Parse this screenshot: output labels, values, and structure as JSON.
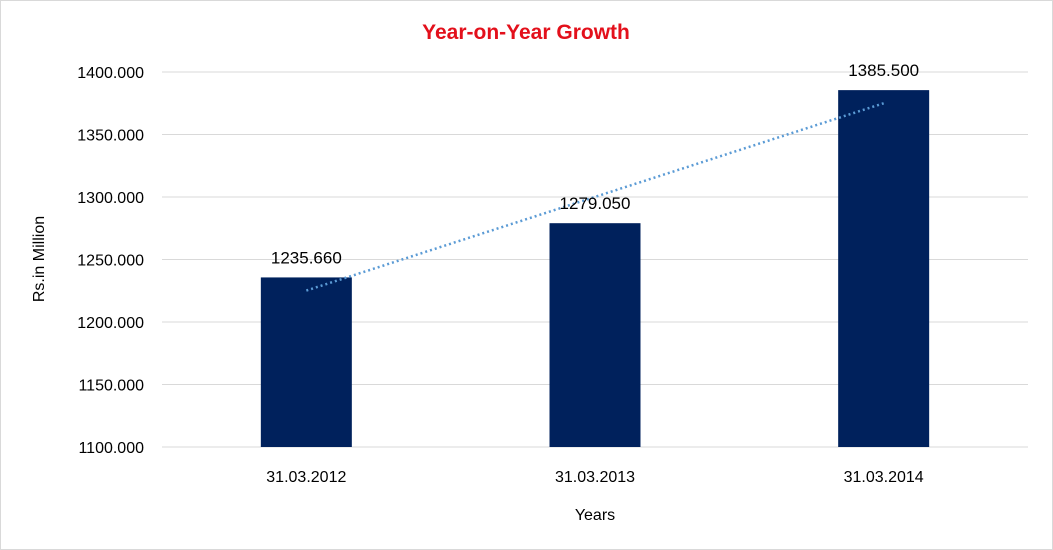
{
  "chart_data": {
    "type": "bar",
    "title": "Year-on-Year Growth",
    "xlabel": "Years",
    "ylabel": "Rs.in Million",
    "categories": [
      "31.03.2012",
      "31.03.2013",
      "31.03.2014"
    ],
    "values": [
      1235.66,
      1279.05,
      1385.5
    ],
    "data_labels": [
      "1235.660",
      "1279.050",
      "1385.500"
    ],
    "ylim": [
      1100,
      1400
    ],
    "y_ticks": [
      "1100.000",
      "1150.000",
      "1200.000",
      "1250.000",
      "1300.000",
      "1350.000",
      "1400.000"
    ],
    "y_tick_values": [
      1100,
      1150,
      1200,
      1250,
      1300,
      1350,
      1400
    ],
    "trendline": {
      "type": "linear",
      "style": "dotted"
    },
    "grid": true,
    "legend": "none",
    "colors": {
      "bar": "#00215c",
      "trendline": "#5b9bd5",
      "title": "#e3101b",
      "grid": "#d9d9d9"
    }
  }
}
